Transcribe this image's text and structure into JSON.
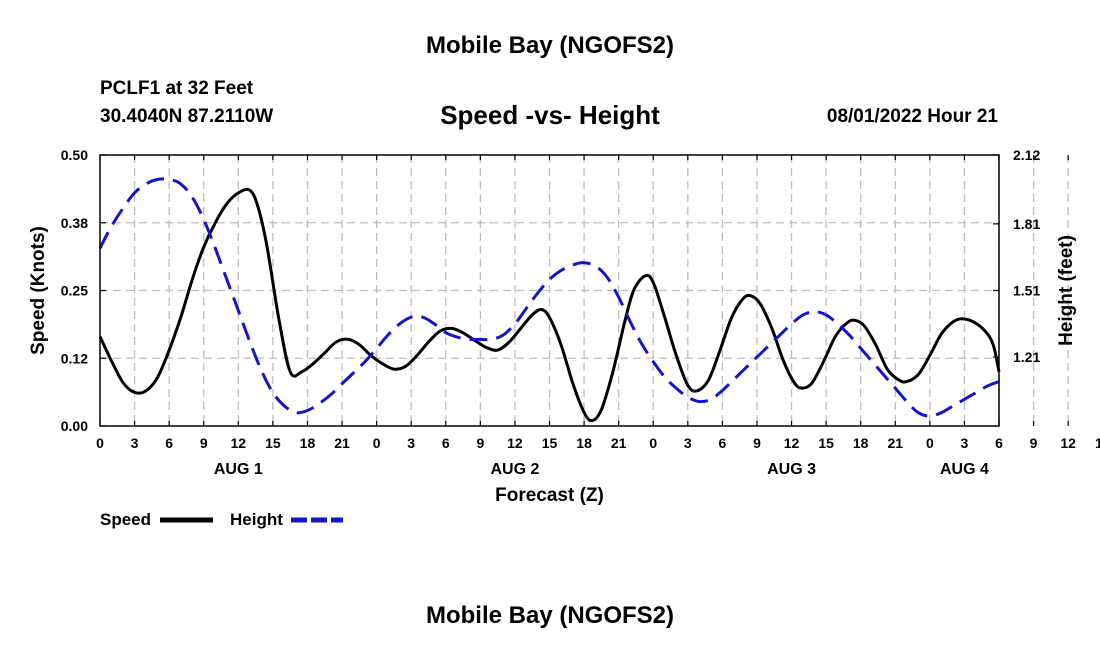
{
  "header": {
    "title": "Mobile Bay (NGOFS2)",
    "station": "PCLF1 at 32 Feet",
    "coords": "30.4040N  87.2110W",
    "datetime": "08/01/2022 Hour 21"
  },
  "footer": {
    "title": "Mobile Bay (NGOFS2)"
  },
  "chart_data": {
    "type": "line",
    "title": "Speed -vs- Height",
    "xlabel": "Forecast (Z)",
    "ylabel": "Speed (Knots)",
    "ylabel_right": "Height (feet)",
    "x_range_hours": [
      0,
      78
    ],
    "x_ticks": [
      "0",
      "3",
      "6",
      "9",
      "12",
      "15",
      "18",
      "21",
      "0",
      "3",
      "6",
      "9",
      "12",
      "15",
      "18",
      "21",
      "0",
      "3",
      "6",
      "9",
      "12",
      "15",
      "18",
      "21",
      "0",
      "3",
      "6",
      "9",
      "12",
      "15",
      "18",
      "21",
      "0",
      "3",
      "6"
    ],
    "date_labels": [
      {
        "label": "AUG 1",
        "hour": 12
      },
      {
        "label": "AUG 2",
        "hour": 36
      },
      {
        "label": "AUG 3",
        "hour": 60
      },
      {
        "label": "AUG 4",
        "hour": 75
      }
    ],
    "ylim": [
      0,
      0.5
    ],
    "y_ticks": [
      "0.00",
      "0.12",
      "0.25",
      "0.38",
      "0.50"
    ],
    "ylim_right": [
      0.9,
      2.12
    ],
    "y_ticks_right": [
      {
        "label": "1.21",
        "value": 1.21
      },
      {
        "label": "1.51",
        "value": 1.51
      },
      {
        "label": "1.81",
        "value": 1.81
      },
      {
        "label": "2.12",
        "value": 2.12
      }
    ],
    "grid": true,
    "legend": [
      {
        "name": "Speed",
        "color": "#000000",
        "dash": "solid"
      },
      {
        "name": "Height",
        "color": "#1515c8",
        "dash": "dashed"
      }
    ],
    "series": [
      {
        "name": "Speed",
        "axis": "left",
        "color": "#000000",
        "points": [
          [
            0,
            0.165
          ],
          [
            1,
            0.12
          ],
          [
            2,
            0.08
          ],
          [
            3,
            0.062
          ],
          [
            4,
            0.065
          ],
          [
            5,
            0.09
          ],
          [
            6,
            0.14
          ],
          [
            7,
            0.2
          ],
          [
            8,
            0.27
          ],
          [
            9,
            0.33
          ],
          [
            10,
            0.375
          ],
          [
            11,
            0.41
          ],
          [
            12,
            0.43
          ],
          [
            13,
            0.435
          ],
          [
            13.7,
            0.405
          ],
          [
            14.5,
            0.33
          ],
          [
            15.5,
            0.2
          ],
          [
            16.5,
            0.1
          ],
          [
            17.5,
            0.1
          ],
          [
            18.5,
            0.115
          ],
          [
            19.5,
            0.135
          ],
          [
            20.5,
            0.155
          ],
          [
            21.5,
            0.16
          ],
          [
            22.5,
            0.15
          ],
          [
            23.5,
            0.13
          ],
          [
            24.5,
            0.115
          ],
          [
            25.5,
            0.105
          ],
          [
            26.5,
            0.11
          ],
          [
            27.5,
            0.13
          ],
          [
            28.5,
            0.155
          ],
          [
            29.5,
            0.175
          ],
          [
            30.5,
            0.18
          ],
          [
            31.5,
            0.172
          ],
          [
            32.5,
            0.158
          ],
          [
            33.5,
            0.145
          ],
          [
            34.5,
            0.14
          ],
          [
            35.5,
            0.155
          ],
          [
            36.5,
            0.18
          ],
          [
            37.5,
            0.205
          ],
          [
            38.3,
            0.215
          ],
          [
            39,
            0.2
          ],
          [
            40,
            0.15
          ],
          [
            41,
            0.08
          ],
          [
            42,
            0.025
          ],
          [
            42.7,
            0.01
          ],
          [
            43.5,
            0.03
          ],
          [
            44.5,
            0.1
          ],
          [
            45.5,
            0.19
          ],
          [
            46.3,
            0.25
          ],
          [
            47.3,
            0.277
          ],
          [
            48,
            0.265
          ],
          [
            49,
            0.2
          ],
          [
            50,
            0.13
          ],
          [
            51,
            0.075
          ],
          [
            51.8,
            0.065
          ],
          [
            52.8,
            0.085
          ],
          [
            53.8,
            0.14
          ],
          [
            54.8,
            0.2
          ],
          [
            55.8,
            0.235
          ],
          [
            56.5,
            0.24
          ],
          [
            57.3,
            0.225
          ],
          [
            58.3,
            0.18
          ],
          [
            59.3,
            0.12
          ],
          [
            60.3,
            0.078
          ],
          [
            61,
            0.07
          ],
          [
            61.8,
            0.08
          ],
          [
            62.8,
            0.12
          ],
          [
            63.8,
            0.165
          ],
          [
            64.8,
            0.19
          ],
          [
            65.5,
            0.195
          ],
          [
            66.3,
            0.185
          ],
          [
            67.3,
            0.15
          ],
          [
            68.3,
            0.105
          ],
          [
            69.3,
            0.085
          ],
          [
            70,
            0.082
          ],
          [
            71,
            0.095
          ],
          [
            72,
            0.13
          ],
          [
            73,
            0.17
          ],
          [
            74,
            0.192
          ],
          [
            74.8,
            0.198
          ],
          [
            75.8,
            0.192
          ],
          [
            76.8,
            0.175
          ],
          [
            77.5,
            0.15
          ],
          [
            78,
            0.1
          ]
        ]
      },
      {
        "name": "Height",
        "axis": "right",
        "color": "#1515c8",
        "points": [
          [
            0,
            1.7
          ],
          [
            1,
            1.8
          ],
          [
            2,
            1.88
          ],
          [
            3,
            1.95
          ],
          [
            4,
            1.99
          ],
          [
            5,
            2.01
          ],
          [
            6,
            2.01
          ],
          [
            7,
            1.99
          ],
          [
            8,
            1.93
          ],
          [
            9,
            1.83
          ],
          [
            10,
            1.7
          ],
          [
            11,
            1.56
          ],
          [
            12,
            1.42
          ],
          [
            13,
            1.28
          ],
          [
            14,
            1.15
          ],
          [
            15,
            1.05
          ],
          [
            16,
            0.99
          ],
          [
            17,
            0.96
          ],
          [
            18,
            0.97
          ],
          [
            19,
            1.0
          ],
          [
            20,
            1.04
          ],
          [
            21,
            1.09
          ],
          [
            22,
            1.14
          ],
          [
            23,
            1.19
          ],
          [
            24,
            1.25
          ],
          [
            25,
            1.31
          ],
          [
            26,
            1.36
          ],
          [
            27,
            1.39
          ],
          [
            28,
            1.39
          ],
          [
            29,
            1.36
          ],
          [
            30,
            1.32
          ],
          [
            31,
            1.3
          ],
          [
            32,
            1.29
          ],
          [
            33,
            1.29
          ],
          [
            34,
            1.29
          ],
          [
            35,
            1.31
          ],
          [
            36,
            1.36
          ],
          [
            37,
            1.43
          ],
          [
            38,
            1.5
          ],
          [
            39,
            1.56
          ],
          [
            40,
            1.6
          ],
          [
            41,
            1.625
          ],
          [
            42,
            1.635
          ],
          [
            43,
            1.62
          ],
          [
            44,
            1.57
          ],
          [
            45,
            1.48
          ],
          [
            46,
            1.37
          ],
          [
            47,
            1.27
          ],
          [
            48,
            1.19
          ],
          [
            49,
            1.12
          ],
          [
            50,
            1.07
          ],
          [
            51,
            1.03
          ],
          [
            52,
            1.01
          ],
          [
            53,
            1.02
          ],
          [
            54,
            1.06
          ],
          [
            55,
            1.11
          ],
          [
            56,
            1.16
          ],
          [
            57,
            1.21
          ],
          [
            58,
            1.26
          ],
          [
            59,
            1.31
          ],
          [
            60,
            1.36
          ],
          [
            61,
            1.4
          ],
          [
            62,
            1.415
          ],
          [
            63,
            1.4
          ],
          [
            64,
            1.36
          ],
          [
            65,
            1.31
          ],
          [
            66,
            1.25
          ],
          [
            67,
            1.19
          ],
          [
            68,
            1.13
          ],
          [
            69,
            1.07
          ],
          [
            70,
            1.01
          ],
          [
            71,
            0.96
          ],
          [
            72,
            0.945
          ],
          [
            73,
            0.96
          ],
          [
            74,
            0.99
          ],
          [
            75,
            1.02
          ],
          [
            76,
            1.05
          ],
          [
            77,
            1.08
          ],
          [
            78,
            1.1
          ]
        ]
      }
    ]
  }
}
